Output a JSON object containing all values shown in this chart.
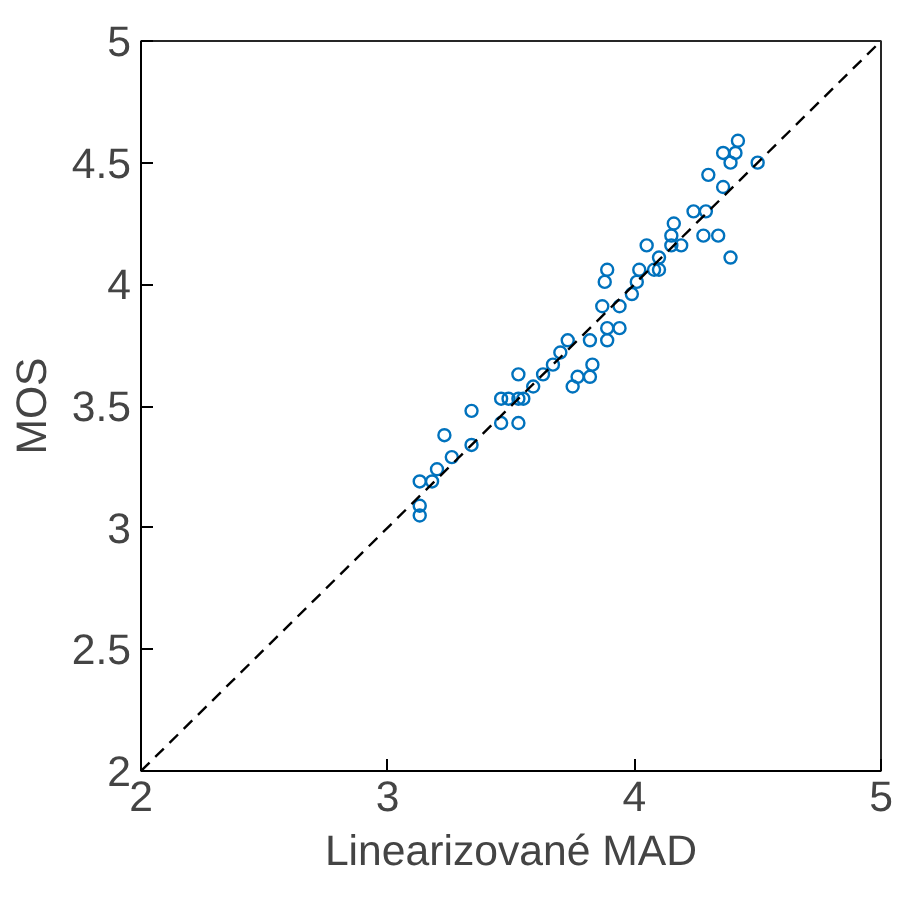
{
  "chart_data": {
    "type": "scatter",
    "xlabel": "Linearizované MAD",
    "ylabel": "MOS",
    "xlim": [
      2,
      5
    ],
    "ylim": [
      2,
      5
    ],
    "xticks": [
      2,
      3,
      4,
      5
    ],
    "yticks": [
      2,
      2.5,
      3,
      3.5,
      4,
      4.5,
      5
    ],
    "grid": false,
    "series": [
      {
        "color": "#0072bd",
        "marker": "circle",
        "x": [
          3.13,
          3.13,
          3.13,
          3.18,
          3.2,
          3.26,
          3.23,
          3.34,
          3.34,
          3.46,
          3.53,
          3.46,
          3.49,
          3.53,
          3.55,
          3.53,
          3.59,
          3.63,
          3.67,
          3.7,
          3.73,
          3.75,
          3.77,
          3.82,
          3.83,
          3.82,
          3.89,
          3.94,
          3.89,
          3.87,
          3.94,
          3.99,
          4.01,
          4.02,
          4.08,
          4.1,
          4.1,
          3.88,
          3.89,
          4.05,
          4.15,
          4.19,
          4.15,
          4.16,
          4.24,
          4.29,
          4.28,
          4.34,
          4.39,
          4.36,
          4.3,
          4.5,
          4.39,
          4.41,
          4.36,
          4.42
        ],
        "values": [
          3.05,
          3.09,
          3.19,
          3.19,
          3.24,
          3.29,
          3.38,
          3.34,
          3.48,
          3.43,
          3.43,
          3.53,
          3.53,
          3.53,
          3.53,
          3.63,
          3.58,
          3.63,
          3.67,
          3.72,
          3.77,
          3.58,
          3.62,
          3.62,
          3.67,
          3.77,
          3.77,
          3.82,
          3.82,
          3.91,
          3.91,
          3.96,
          4.01,
          4.06,
          4.06,
          4.06,
          4.11,
          4.01,
          4.06,
          4.16,
          4.16,
          4.16,
          4.2,
          4.25,
          4.3,
          4.3,
          4.2,
          4.2,
          4.11,
          4.4,
          4.45,
          4.5,
          4.5,
          4.54,
          4.54,
          4.59
        ]
      },
      {
        "type": "line",
        "color": "#000000",
        "line_style": "dashed",
        "marker": "none",
        "x": [
          2,
          5
        ],
        "values": [
          2,
          5
        ]
      }
    ]
  }
}
